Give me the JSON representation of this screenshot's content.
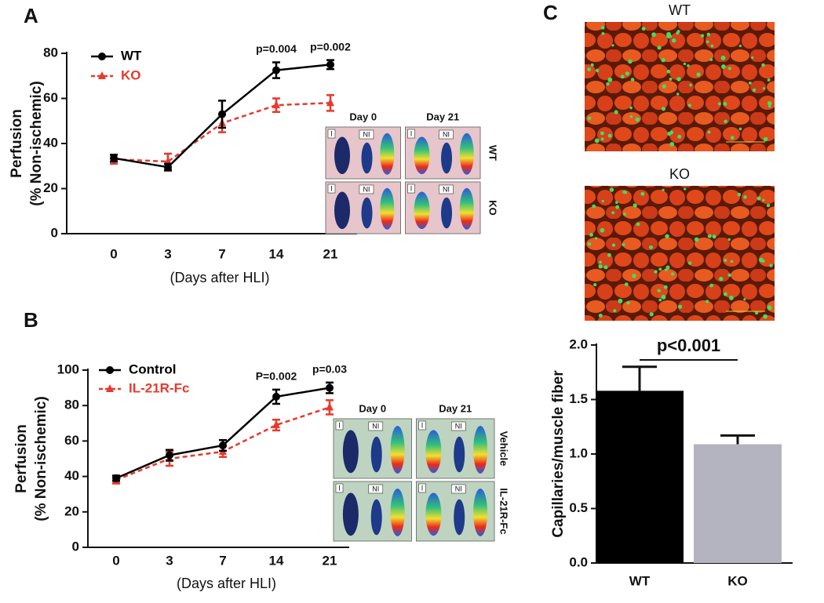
{
  "chart_data": [
    {
      "type": "line",
      "panel": "A",
      "ylabel": [
        "Perfusion",
        "(% Non-ischemic)"
      ],
      "xlabel": "(Days after HLI)",
      "categories": [
        "0",
        "3",
        "7",
        "14",
        "21"
      ],
      "series": [
        {
          "name": "WT",
          "color": "#000000",
          "dashed": false,
          "values": [
            33.5,
            29.5,
            53,
            72.5,
            75
          ],
          "errors": [
            1.5,
            1.5,
            6,
            3.5,
            2
          ]
        },
        {
          "name": "KO",
          "color": "#e8392c",
          "dashed": true,
          "values": [
            33,
            32,
            49,
            57,
            58
          ],
          "errors": [
            2,
            3.5,
            4,
            3,
            3.5
          ]
        }
      ],
      "ylim": [
        0,
        80
      ],
      "yticks": [
        0,
        20,
        40,
        60,
        80
      ],
      "annotations": [
        {
          "text": "p=0.004",
          "category": "14"
        },
        {
          "text": "p=0.002",
          "category": "21"
        }
      ],
      "inset": {
        "columns": [
          "Day 0",
          "Day 21"
        ],
        "rows": [
          "WT",
          "KO"
        ],
        "region_labels": [
          "I",
          "NI"
        ]
      }
    },
    {
      "type": "line",
      "panel": "B",
      "ylabel": [
        "Perfusion",
        "(% Non-ischemic)"
      ],
      "xlabel": "(Days after HLI)",
      "categories": [
        "0",
        "3",
        "7",
        "14",
        "21"
      ],
      "series": [
        {
          "name": "Control",
          "color": "#000000",
          "dashed": false,
          "values": [
            39,
            52,
            57.5,
            85,
            90
          ],
          "errors": [
            1.5,
            3,
            3,
            4,
            3
          ]
        },
        {
          "name": "IL-21R-Fc",
          "color": "#e8392c",
          "dashed": true,
          "values": [
            38,
            50,
            54,
            69,
            79
          ],
          "errors": [
            2,
            4,
            3,
            3,
            4
          ]
        }
      ],
      "ylim": [
        0,
        100
      ],
      "yticks": [
        0,
        20,
        40,
        60,
        80,
        100
      ],
      "annotations": [
        {
          "text": "P=0.002",
          "category": "14"
        },
        {
          "text": "p=0.03",
          "category": "21"
        }
      ],
      "inset": {
        "columns": [
          "Day 0",
          "Day 21"
        ],
        "rows": [
          "Vehicle",
          "IL-21R-Fc"
        ],
        "region_labels": [
          "I",
          "NI"
        ]
      }
    },
    {
      "type": "bar",
      "panel": "C",
      "ylabel": "Capillaries/muscle fiber",
      "categories": [
        "WT",
        "KO"
      ],
      "values": [
        1.58,
        1.09
      ],
      "errors": [
        0.22,
        0.08
      ],
      "colors": [
        "#000000",
        "#b4b4c0"
      ],
      "ylim": [
        0,
        2
      ],
      "yticks": [
        {
          "value": 0,
          "label": "0.0"
        },
        {
          "value": 0.5,
          "label": "0.5"
        },
        {
          "value": 1,
          "label": "1.0"
        },
        {
          "value": 1.5,
          "label": "1.5"
        },
        {
          "value": 2,
          "label": "2.0"
        }
      ],
      "annotations": [
        {
          "text": "p<0.001"
        }
      ],
      "images": [
        "WT",
        "KO"
      ]
    }
  ]
}
